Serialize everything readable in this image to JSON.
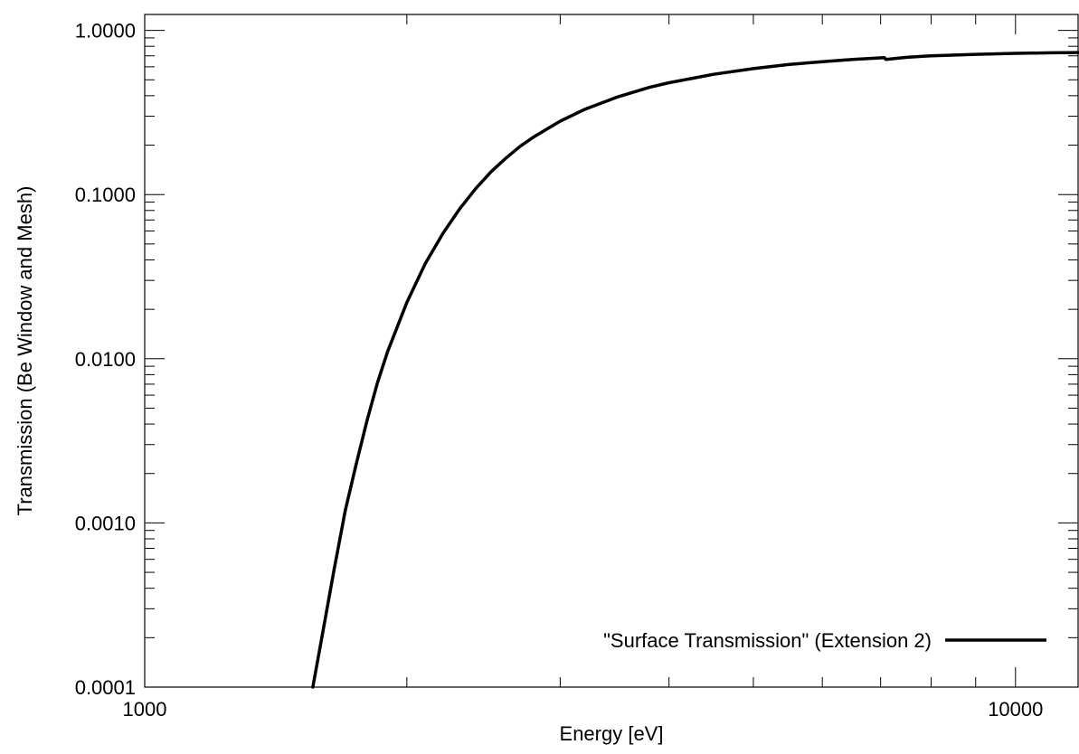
{
  "chart_data": {
    "type": "line",
    "title": "",
    "xlabel": "Energy [eV]",
    "ylabel": "Transmission (Be Window and Mesh)",
    "xscale": "log",
    "yscale": "log",
    "xlim": [
      1000,
      11800
    ],
    "ylim": [
      0.0001,
      1.25
    ],
    "grid": false,
    "legend_position": "bottom-right",
    "x_tick_labels": [
      {
        "value": 1000,
        "label": "1000"
      },
      {
        "value": 10000,
        "label": "10000"
      }
    ],
    "y_tick_labels": [
      {
        "value": 1.0,
        "label": "1.0000"
      },
      {
        "value": 0.1,
        "label": "0.1000"
      },
      {
        "value": 0.01,
        "label": "0.0100"
      },
      {
        "value": 0.001,
        "label": "0.0010"
      },
      {
        "value": 0.0001,
        "label": "0.0001"
      }
    ],
    "series": [
      {
        "name": "\"Surface Transmission\" (Extension 2)",
        "color": "#000000",
        "x": [
          1560,
          1600,
          1650,
          1700,
          1750,
          1800,
          1850,
          1900,
          2000,
          2100,
          2200,
          2300,
          2400,
          2500,
          2600,
          2700,
          2800,
          3000,
          3200,
          3500,
          3800,
          4000,
          4500,
          5000,
          5500,
          6000,
          6500,
          7000,
          7070,
          7100,
          7500,
          8000,
          9000,
          10000,
          11000,
          11800
        ],
        "y": [
          0.0001,
          0.00021,
          0.00052,
          0.0012,
          0.0023,
          0.0042,
          0.0071,
          0.011,
          0.022,
          0.038,
          0.058,
          0.082,
          0.109,
          0.138,
          0.167,
          0.197,
          0.225,
          0.28,
          0.33,
          0.395,
          0.45,
          0.48,
          0.54,
          0.585,
          0.62,
          0.645,
          0.665,
          0.68,
          0.682,
          0.665,
          0.685,
          0.7,
          0.715,
          0.725,
          0.73,
          0.733
        ]
      }
    ]
  }
}
